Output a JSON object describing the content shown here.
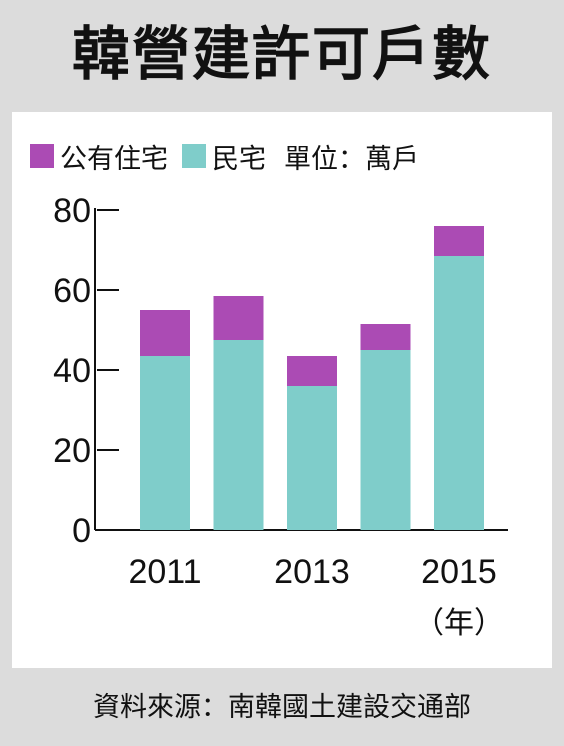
{
  "title": "韓營建許可戶數",
  "footer": "資料來源：南韓國土建設交通部",
  "chart_data": {
    "type": "bar",
    "stacked": true,
    "categories": [
      "2011",
      "2012",
      "2013",
      "2014",
      "2015"
    ],
    "x_tick_labels": [
      "2011",
      "2013",
      "2015"
    ],
    "x_unit": "（年）",
    "unit_label": "單位：萬戶",
    "series": [
      {
        "name": "民宅",
        "color": "#7fcdca",
        "values": [
          43.5,
          47.5,
          36.0,
          45.0,
          68.5
        ]
      },
      {
        "name": "公有住宅",
        "color": "#ab4bb4",
        "values": [
          11.5,
          11.0,
          7.5,
          6.5,
          7.5
        ]
      }
    ],
    "legend_order": [
      "公有住宅",
      "民宅"
    ],
    "ylim": [
      0,
      80
    ],
    "y_ticks": [
      0,
      20,
      40,
      60,
      80
    ],
    "grid": false
  }
}
